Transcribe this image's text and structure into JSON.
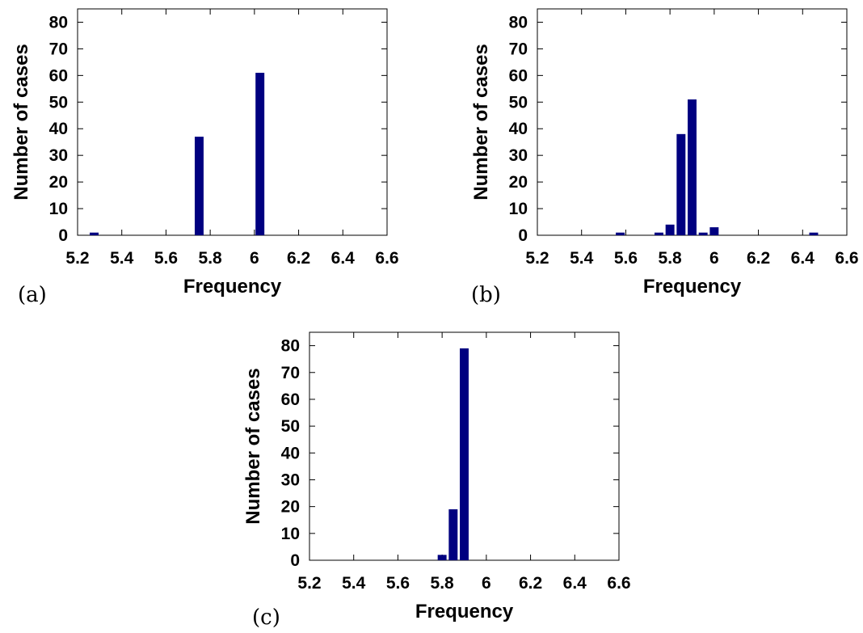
{
  "bar_color": "#000080",
  "chart_data": [
    {
      "type": "bar",
      "panel_label": "(a)",
      "xlabel": "Frequency",
      "ylabel": "Number of cases",
      "xlim": [
        5.2,
        6.6
      ],
      "ylim": [
        0,
        85
      ],
      "x_ticks": [
        "5.2",
        "5.4",
        "5.6",
        "5.8",
        "6",
        "6.2",
        "6.4",
        "6.6"
      ],
      "y_ticks": [
        "0",
        "10",
        "20",
        "30",
        "40",
        "50",
        "60",
        "70",
        "80"
      ],
      "bar_width": 0.04,
      "x": [
        5.275,
        5.75,
        6.025
      ],
      "values": [
        1,
        37,
        61
      ]
    },
    {
      "type": "bar",
      "panel_label": "(b)",
      "xlabel": "Frequency",
      "ylabel": "Number of cases",
      "xlim": [
        5.2,
        6.6
      ],
      "ylim": [
        0,
        85
      ],
      "x_ticks": [
        "5.2",
        "5.4",
        "5.6",
        "5.8",
        "6",
        "6.2",
        "6.4",
        "6.6"
      ],
      "y_ticks": [
        "0",
        "10",
        "20",
        "30",
        "40",
        "50",
        "60",
        "70",
        "80"
      ],
      "bar_width": 0.04,
      "x": [
        5.575,
        5.75,
        5.8,
        5.85,
        5.9,
        5.95,
        6.0,
        6.45
      ],
      "values": [
        1,
        1,
        4,
        38,
        51,
        1,
        3,
        1
      ]
    },
    {
      "type": "bar",
      "panel_label": "(c)",
      "xlabel": "Frequency",
      "ylabel": "Number of cases",
      "xlim": [
        5.2,
        6.6
      ],
      "ylim": [
        0,
        85
      ],
      "x_ticks": [
        "5.2",
        "5.4",
        "5.6",
        "5.8",
        "6",
        "6.2",
        "6.4",
        "6.6"
      ],
      "y_ticks": [
        "0",
        "10",
        "20",
        "30",
        "40",
        "50",
        "60",
        "70",
        "80"
      ],
      "bar_width": 0.04,
      "x": [
        5.8,
        5.85,
        5.9
      ],
      "values": [
        2,
        19,
        79
      ]
    }
  ]
}
